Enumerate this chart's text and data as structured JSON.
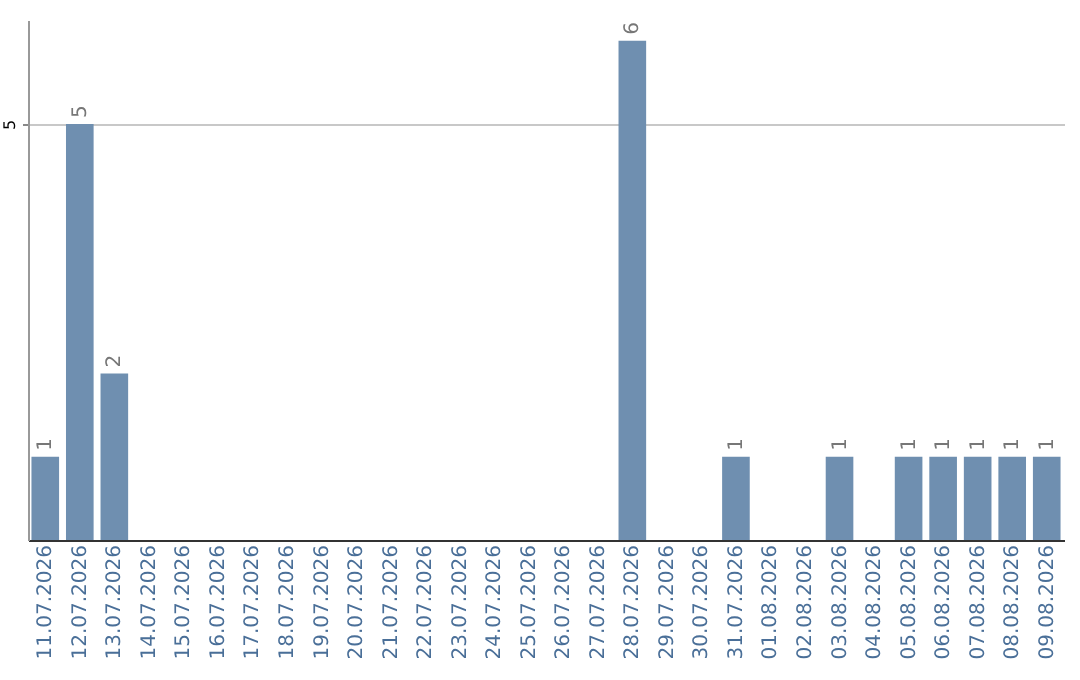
{
  "chart_data": {
    "type": "bar",
    "categories": [
      "11.07.2026",
      "12.07.2026",
      "13.07.2026",
      "14.07.2026",
      "15.07.2026",
      "16.07.2026",
      "17.07.2026",
      "18.07.2026",
      "19.07.2026",
      "20.07.2026",
      "21.07.2026",
      "22.07.2026",
      "23.07.2026",
      "24.07.2026",
      "25.07.2026",
      "26.07.2026",
      "27.07.2026",
      "28.07.2026",
      "29.07.2026",
      "30.07.2026",
      "31.07.2026",
      "01.08.2026",
      "02.08.2026",
      "03.08.2026",
      "04.08.2026",
      "05.08.2026",
      "06.08.2026",
      "07.08.2026",
      "08.08.2026",
      "09.08.2026"
    ],
    "values": [
      1,
      5,
      2,
      0,
      0,
      0,
      0,
      0,
      0,
      0,
      0,
      0,
      0,
      0,
      0,
      0,
      0,
      6,
      0,
      0,
      1,
      0,
      0,
      1,
      0,
      1,
      1,
      1,
      1,
      1
    ],
    "value_labels": [
      "1",
      "5",
      "2",
      null,
      null,
      null,
      null,
      null,
      null,
      null,
      null,
      null,
      null,
      null,
      null,
      null,
      null,
      "6",
      null,
      null,
      "1",
      null,
      null,
      "1",
      null,
      "1",
      "1",
      "1",
      "1",
      "1"
    ],
    "color": "#6f8fb0",
    "ylim": [
      0,
      6.25
    ],
    "yticks": [
      5
    ],
    "grid": "y"
  }
}
